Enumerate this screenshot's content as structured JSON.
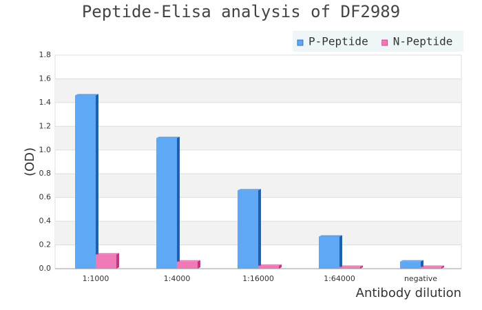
{
  "chart_data": {
    "type": "bar",
    "title": "Peptide-Elisa analysis of DF2989",
    "x_label": "Antibody dilution",
    "y_label": "(OD)",
    "categories": [
      "1:1000",
      "1:4000",
      "1:16000",
      "1:64000",
      "negative"
    ],
    "series": [
      {
        "name": "P-Peptide",
        "color": "#5fa8f5",
        "values": [
          1.46,
          1.1,
          0.66,
          0.27,
          0.06
        ]
      },
      {
        "name": "N-Peptide",
        "color": "#f07ab8",
        "values": [
          0.12,
          0.06,
          0.025,
          0.015,
          0.015
        ]
      }
    ],
    "ylim": [
      0,
      1.8
    ],
    "yticks": [
      {
        "value": 0,
        "label": "0.0"
      },
      0.2,
      0.4,
      0.6,
      0.8,
      {
        "value": 1,
        "label": "1.0"
      },
      1.2,
      1.4,
      1.6,
      1.8
    ],
    "grid": true,
    "legend": "top-right"
  }
}
